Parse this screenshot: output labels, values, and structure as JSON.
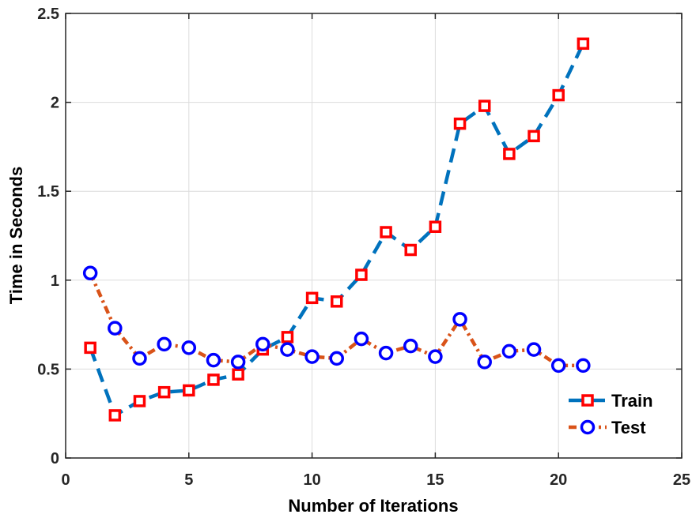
{
  "chart_data": {
    "type": "line",
    "title": "",
    "xlabel": "Number of Iterations",
    "ylabel": "Time in Seconds",
    "xlim": [
      0,
      25
    ],
    "ylim": [
      0,
      2.5
    ],
    "xticks": [
      0,
      5,
      10,
      15,
      20,
      25
    ],
    "yticks": [
      0,
      0.5,
      1,
      1.5,
      2,
      2.5
    ],
    "xtick_labels": [
      "0",
      "5",
      "10",
      "15",
      "20",
      "25"
    ],
    "ytick_labels": [
      "0",
      "0.5",
      "1",
      "1.5",
      "2",
      "2.5"
    ],
    "grid": true,
    "legend_position": "bottom-right",
    "x": [
      1,
      2,
      3,
      4,
      5,
      6,
      7,
      8,
      9,
      10,
      11,
      12,
      13,
      14,
      15,
      16,
      17,
      18,
      19,
      20,
      21
    ],
    "series": [
      {
        "name": "Train",
        "line_color": "#0072BD",
        "marker": "square",
        "marker_color": "#FF0000",
        "line_style": "dashed",
        "values": [
          0.62,
          0.24,
          0.32,
          0.37,
          0.38,
          0.44,
          0.47,
          0.61,
          0.68,
          0.9,
          0.88,
          1.03,
          1.27,
          1.17,
          1.3,
          1.88,
          1.98,
          1.71,
          1.81,
          2.04,
          2.33
        ]
      },
      {
        "name": "Test",
        "line_color": "#D95319",
        "marker": "circle",
        "marker_color": "#0000FF",
        "line_style": "dash-dot",
        "values": [
          1.04,
          0.73,
          0.56,
          0.64,
          0.62,
          0.55,
          0.54,
          0.64,
          0.61,
          0.57,
          0.56,
          0.67,
          0.59,
          0.63,
          0.57,
          0.78,
          0.54,
          0.6,
          0.61,
          0.52,
          0.52
        ]
      }
    ]
  }
}
